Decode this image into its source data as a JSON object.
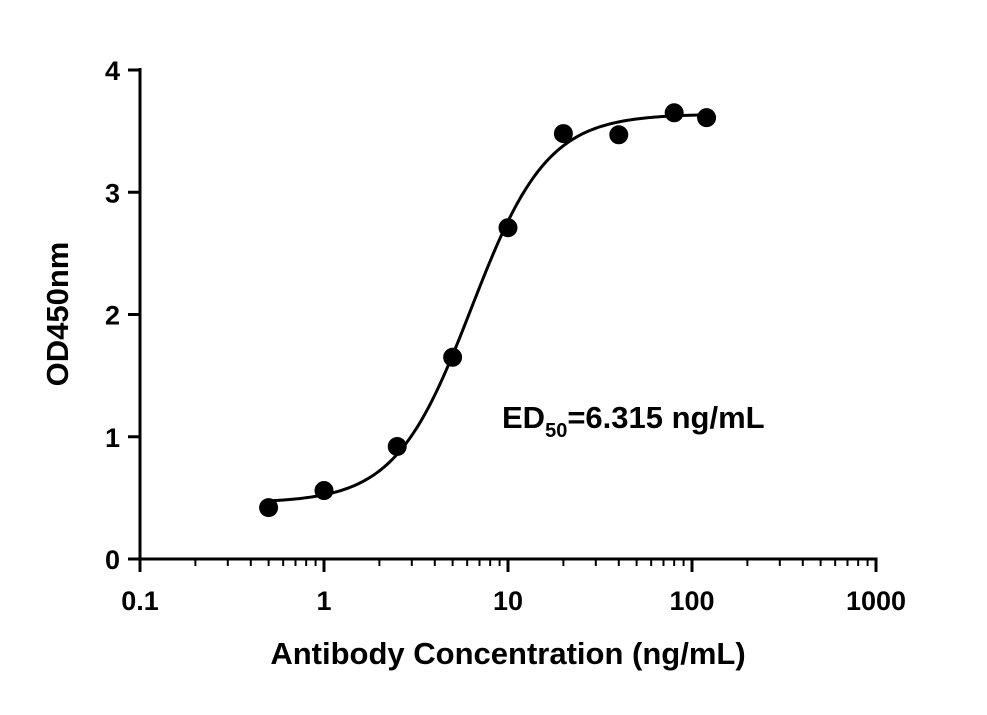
{
  "chart_data": {
    "type": "scatter",
    "xscale": "log",
    "xlim": [
      0.1,
      1000
    ],
    "ylim": [
      0,
      4
    ],
    "xticks": [
      "0.1",
      "1",
      "10",
      "100",
      "1000"
    ],
    "xtick_values": [
      0.1,
      1,
      10,
      100,
      1000
    ],
    "yticks": [
      "0",
      "1",
      "2",
      "3",
      "4"
    ],
    "ytick_values": [
      0,
      1,
      2,
      3,
      4
    ],
    "xlabel": "Antibody Concentration (ng/mL)",
    "ylabel": "OD450nm",
    "grid": false,
    "series": [
      {
        "x": [
          0.5,
          1,
          2.5,
          5,
          10,
          20,
          40,
          80,
          120
        ],
        "y": [
          0.42,
          0.56,
          0.92,
          1.65,
          2.71,
          3.48,
          3.47,
          3.65,
          3.61
        ]
      }
    ],
    "fit": {
      "model": "4PL",
      "bottom": 0.46,
      "top": 3.64,
      "ec50": 6.315,
      "hill": 2.1,
      "x_range": [
        0.5,
        120
      ]
    },
    "annotation": {
      "prefix": "ED",
      "subscript": "50",
      "suffix": "=6.315 ng/mL"
    },
    "colors": {
      "marker": "#000000",
      "line": "#000000",
      "axis": "#000000"
    }
  }
}
